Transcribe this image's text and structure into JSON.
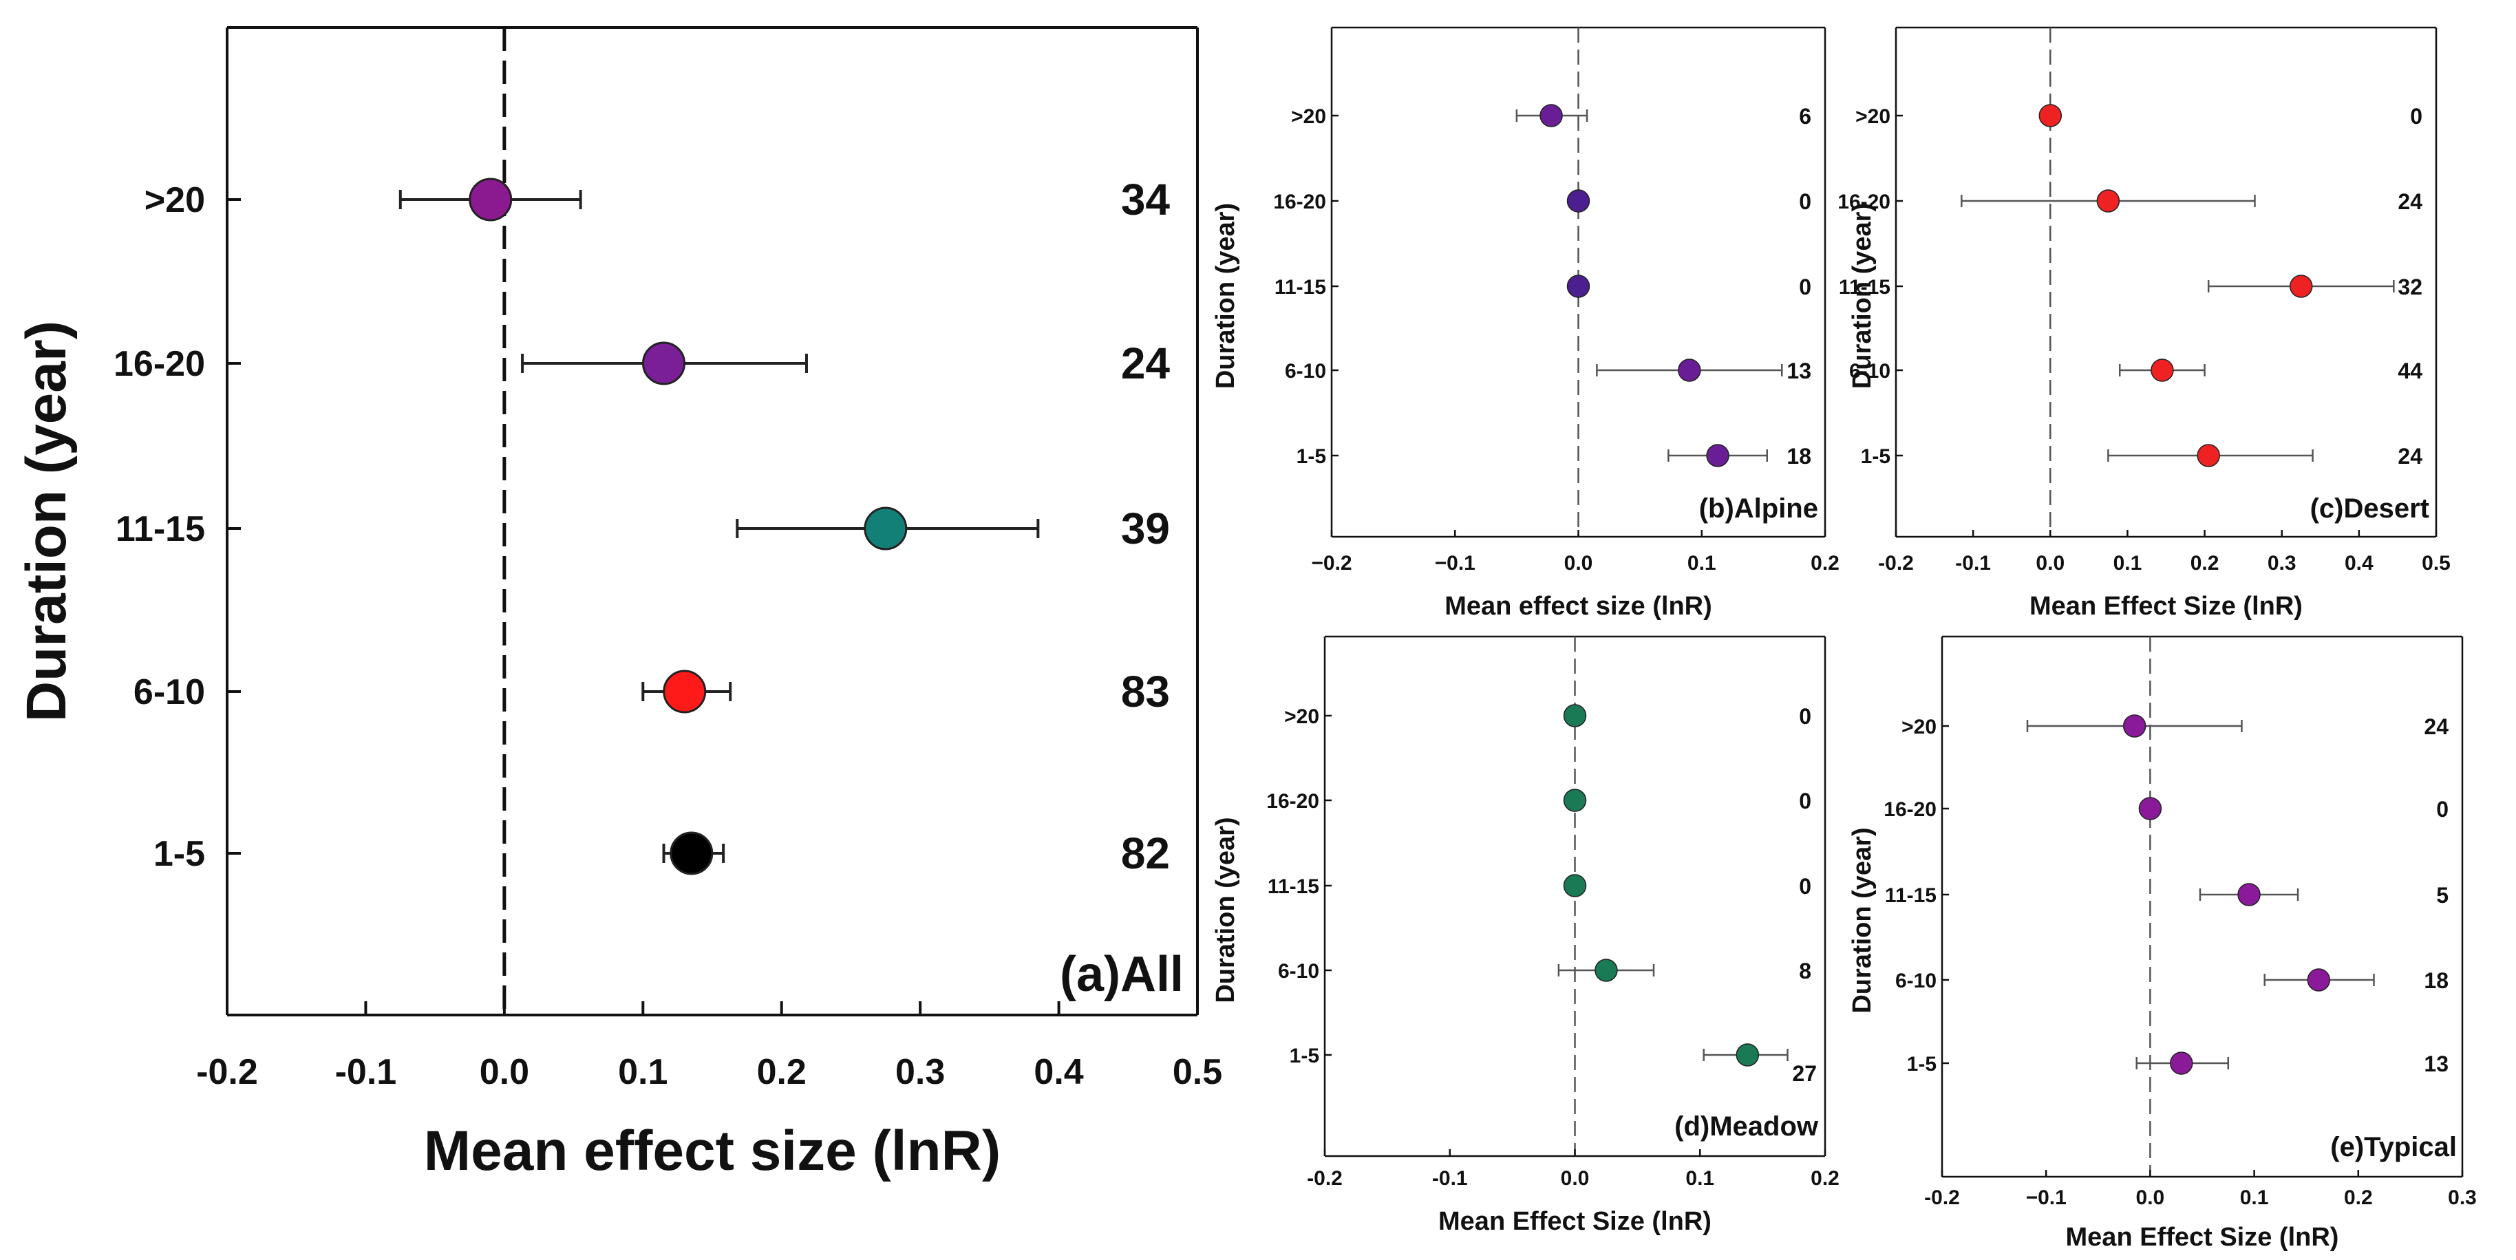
{
  "chart_data": [
    {
      "id": "a",
      "type": "scatter",
      "subtype": "forest-plot",
      "panel_label": "(a)All",
      "xlabel": "Mean effect size (lnR)",
      "ylabel": "Duration (year)",
      "xlim": [
        -0.2,
        0.5
      ],
      "xticks": [
        -0.2,
        -0.1,
        0.0,
        0.1,
        0.2,
        0.3,
        0.4,
        0.5
      ],
      "xtick_labels": [
        "-0.2",
        "-0.1",
        "0.0",
        "0.1",
        "0.2",
        "0.3",
        "0.4",
        "0.5"
      ],
      "reference_line": 0,
      "categories": [
        ">20",
        "16-20",
        "11-15",
        "6-10",
        "1-5"
      ],
      "means": [
        -0.01,
        0.115,
        0.275,
        0.13,
        0.135
      ],
      "ci_low": [
        -0.075,
        0.013,
        0.168,
        0.1,
        0.115
      ],
      "ci_high": [
        0.055,
        0.218,
        0.385,
        0.163,
        0.158
      ],
      "n_labels": [
        "34",
        "24",
        "39",
        "83",
        "82"
      ],
      "colors": [
        "#8b1a91",
        "#7a1f97",
        "#138078",
        "#ff1a1a",
        "#000000"
      ]
    },
    {
      "id": "b",
      "type": "scatter",
      "subtype": "forest-plot",
      "panel_label": "(b)Alpine",
      "xlabel": "Mean effect size (lnR)",
      "ylabel": "Duration (year)",
      "xlim": [
        -0.2,
        0.2
      ],
      "xticks": [
        -0.2,
        -0.1,
        0.0,
        0.1,
        0.2
      ],
      "xtick_labels": [
        "−0.2",
        "−0.1",
        "0.0",
        "0.1",
        "0.2"
      ],
      "reference_line": 0,
      "categories": [
        ">20",
        "16-20",
        "11-15",
        "6-10",
        "1-5"
      ],
      "means": [
        -0.022,
        0.0,
        0.0,
        0.09,
        0.113
      ],
      "ci_low": [
        -0.05,
        null,
        null,
        0.015,
        0.073
      ],
      "ci_high": [
        0.007,
        null,
        null,
        0.165,
        0.153
      ],
      "n_labels": [
        "6",
        "0",
        "0",
        "13",
        "18"
      ],
      "colors": [
        "#6a1e96",
        "#4b1f8f",
        "#4b1f8f",
        "#6a1e96",
        "#6a1e96"
      ]
    },
    {
      "id": "c",
      "type": "scatter",
      "subtype": "forest-plot",
      "panel_label": "(c)Desert",
      "xlabel": "Mean Effect Size (lnR)",
      "ylabel": "Duration (year)",
      "xlim": [
        -0.2,
        0.5
      ],
      "xticks": [
        -0.2,
        -0.1,
        0.0,
        0.1,
        0.2,
        0.3,
        0.4,
        0.5
      ],
      "xtick_labels": [
        "-0.2",
        "-0.1",
        "0.0",
        "0.1",
        "0.2",
        "0.3",
        "0.4",
        "0.5"
      ],
      "reference_line": 0,
      "categories": [
        ">20",
        "16-20",
        "11-15",
        "6-10",
        "1-5"
      ],
      "means": [
        0.0,
        0.075,
        0.325,
        0.145,
        0.205
      ],
      "ci_low": [
        null,
        -0.115,
        0.205,
        0.09,
        0.075
      ],
      "ci_high": [
        null,
        0.265,
        0.445,
        0.2,
        0.34
      ],
      "n_labels": [
        "0",
        "24",
        "32",
        "44",
        "24"
      ],
      "colors": [
        "#ee2222",
        "#ee2222",
        "#ee2222",
        "#ee2222",
        "#ee2222"
      ]
    },
    {
      "id": "d",
      "type": "scatter",
      "subtype": "forest-plot",
      "panel_label": "(d)Meadow",
      "xlabel": "Mean Effect Size (lnR)",
      "ylabel": "Duration (year)",
      "xlim": [
        -0.2,
        0.2
      ],
      "xticks": [
        -0.2,
        -0.1,
        0.0,
        0.1,
        0.2
      ],
      "xtick_labels": [
        "-0.2",
        "-0.1",
        "0.0",
        "0.1",
        "0.2"
      ],
      "reference_line": 0,
      "categories": [
        ">20",
        "16-20",
        "11-15",
        "6-10",
        "1-5"
      ],
      "means": [
        0.0,
        0.0,
        0.0,
        0.025,
        0.138
      ],
      "ci_low": [
        null,
        null,
        null,
        -0.013,
        0.103
      ],
      "ci_high": [
        null,
        null,
        null,
        0.063,
        0.17
      ],
      "n_labels": [
        "0",
        "0",
        "0",
        "8",
        "27"
      ],
      "colors": [
        "#1a7a55",
        "#1a7a55",
        "#1a7a55",
        "#1a7a55",
        "#1a7a55"
      ]
    },
    {
      "id": "e",
      "type": "scatter",
      "subtype": "forest-plot",
      "panel_label": "(e)Typical",
      "xlabel": "Mean Effect Size (lnR)",
      "ylabel": "Duration (year)",
      "xlim": [
        -0.2,
        0.3
      ],
      "xticks": [
        -0.2,
        -0.1,
        0.0,
        0.1,
        0.2,
        0.3
      ],
      "xtick_labels": [
        "-0.2",
        "−0.1",
        "0.0",
        "0.1",
        "0.2",
        "0.3"
      ],
      "reference_line": 0,
      "categories": [
        ">20",
        "16-20",
        "11-15",
        "6-10",
        "1-5"
      ],
      "means": [
        -0.015,
        0.0,
        0.095,
        0.162,
        0.03
      ],
      "ci_low": [
        -0.118,
        null,
        0.048,
        0.11,
        -0.013
      ],
      "ci_high": [
        0.088,
        null,
        0.142,
        0.215,
        0.075
      ],
      "n_labels": [
        "24",
        "0",
        "5",
        "18",
        "13"
      ],
      "colors": [
        "#8b1a9a",
        "#8b1a9a",
        "#8b1a9a",
        "#8b1a9a",
        "#8b1a9a"
      ]
    }
  ]
}
